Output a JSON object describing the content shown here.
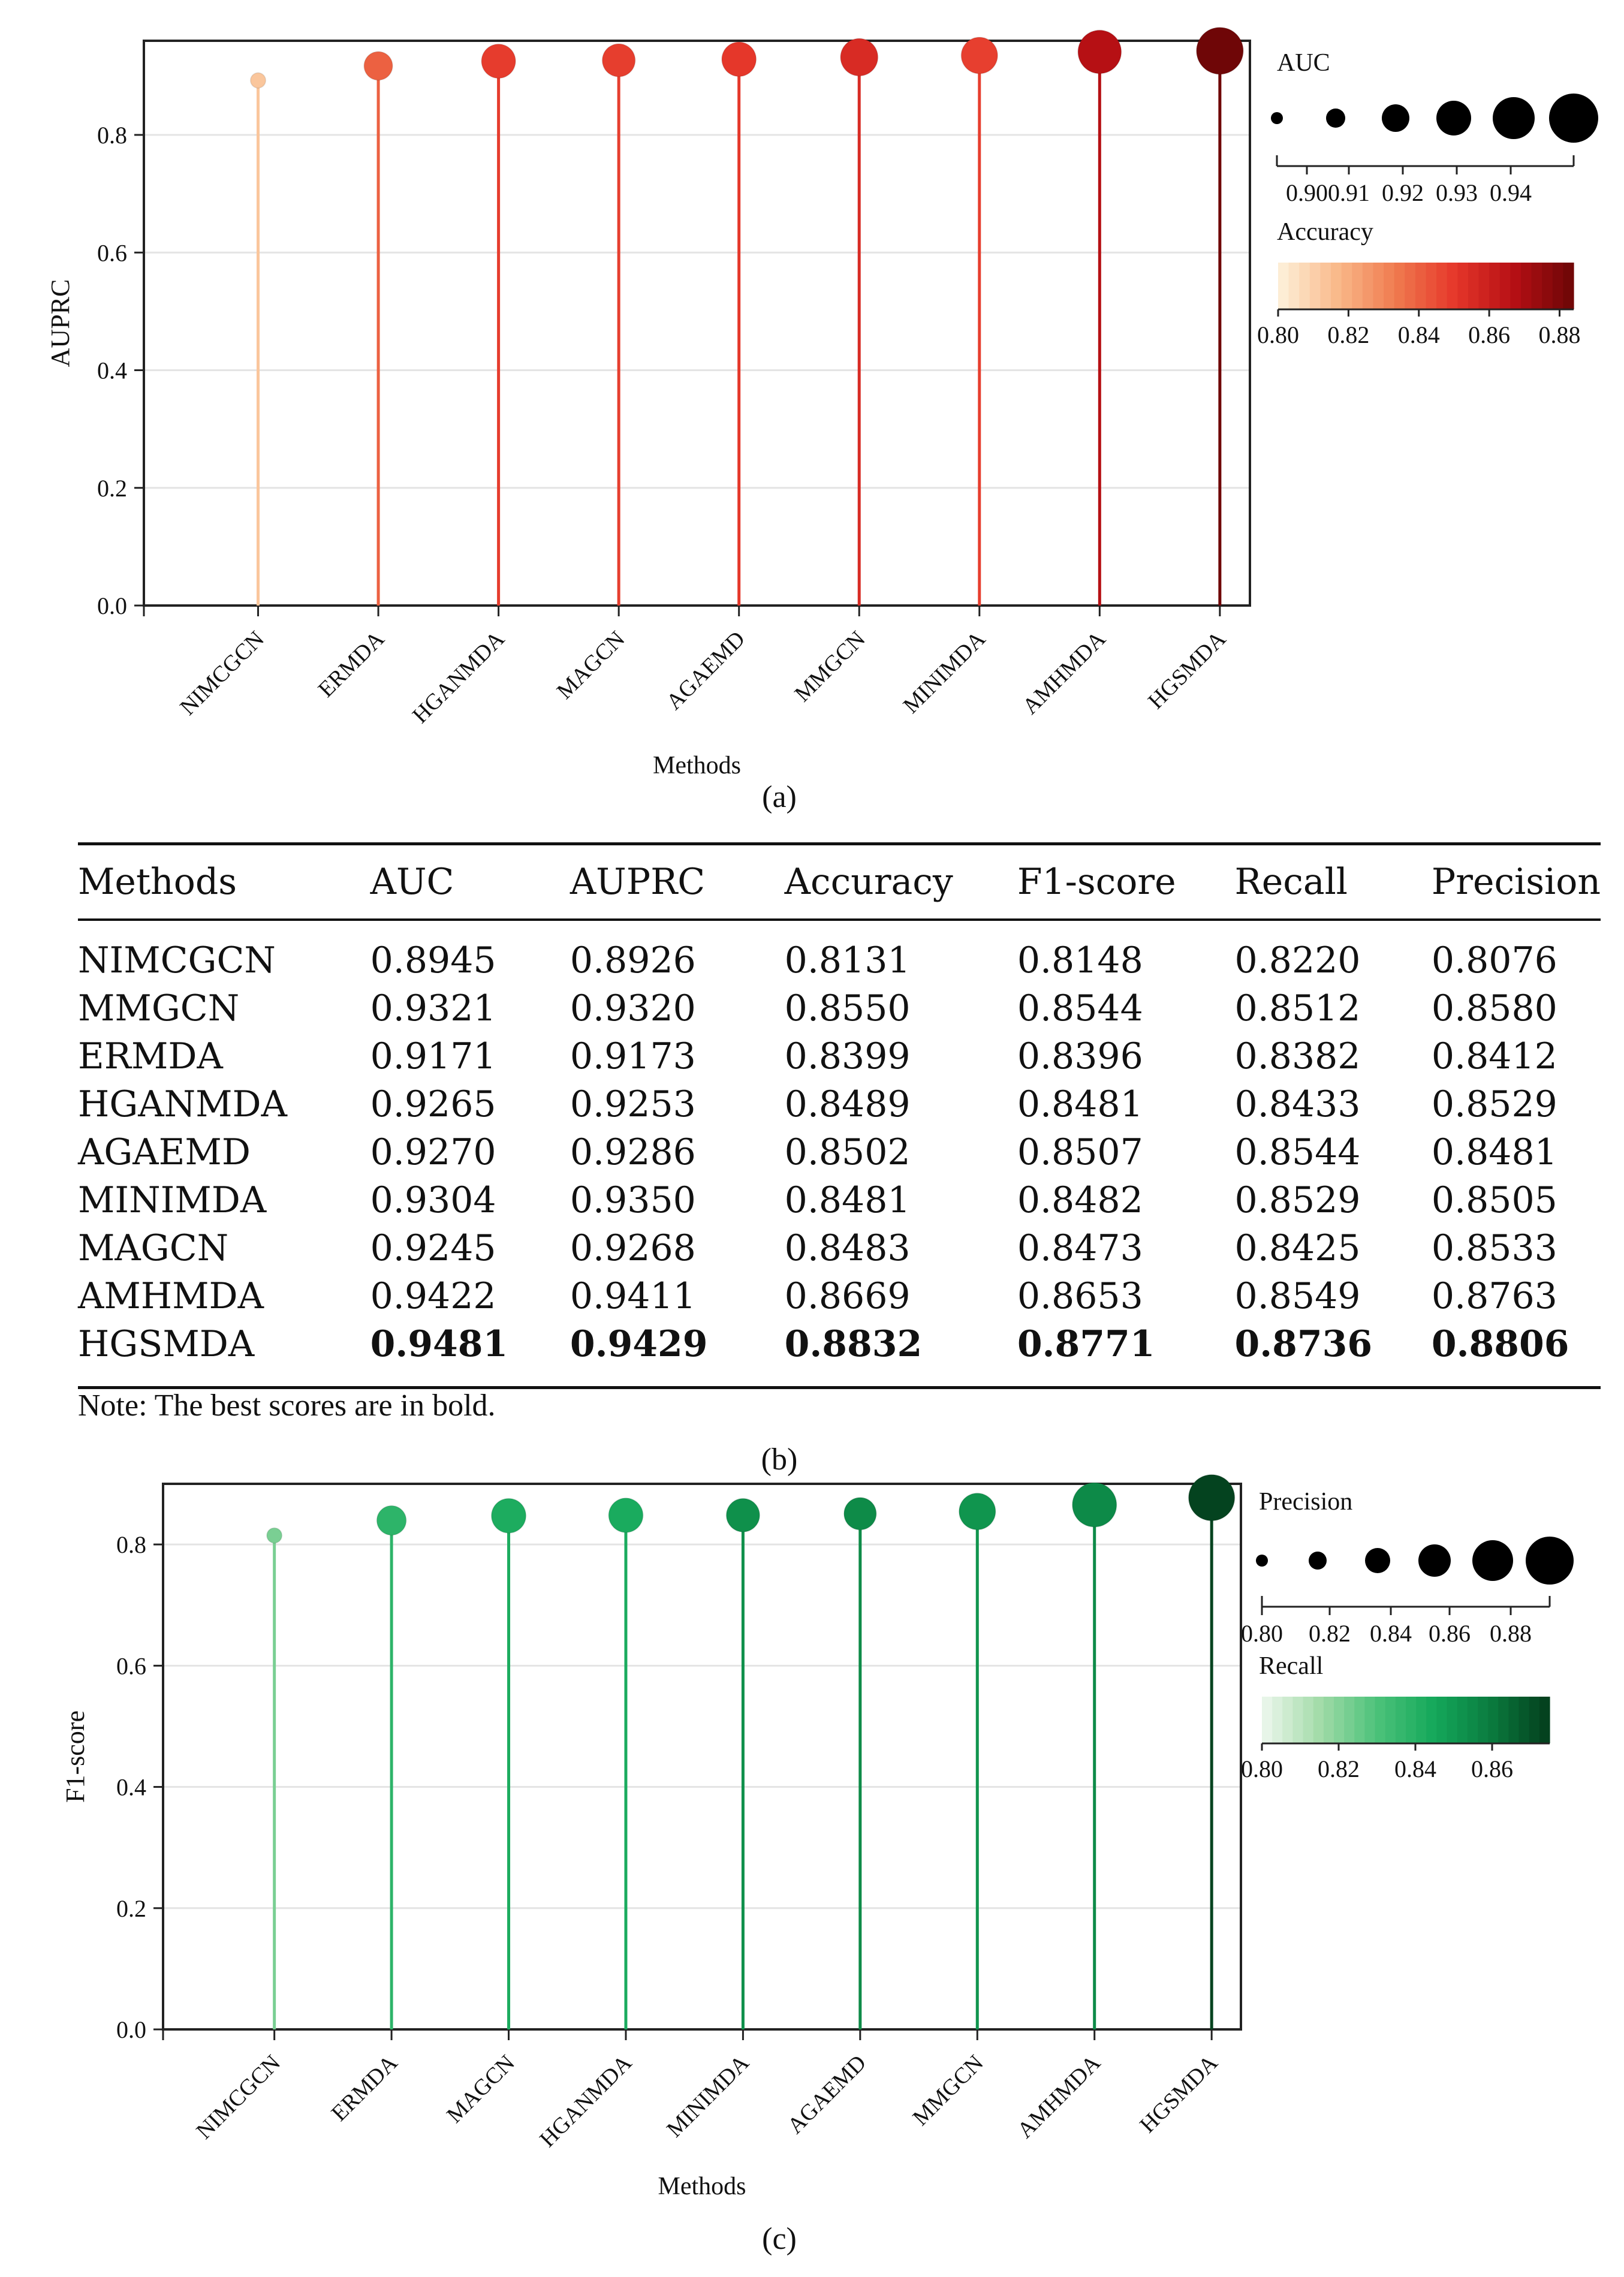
{
  "chart_data": [
    {
      "panel": "(a)",
      "type": "lollipop",
      "xlabel": "Methods",
      "ylabel": "AUPRC",
      "ylim": [
        0,
        0.96
      ],
      "yticks": [
        "0.0",
        "0.2",
        "0.4",
        "0.6",
        "0.8"
      ],
      "ytick_values": [
        0,
        0.2,
        0.4,
        0.6,
        0.8
      ],
      "categories": [
        "NIMCGCN",
        "ERMDA",
        "HGANMDA",
        "MAGCN",
        "AGAEMD",
        "MMGCN",
        "MINIMDA",
        "AMHMDA",
        "HGSMDA"
      ],
      "values": [
        0.8926,
        0.9173,
        0.9253,
        0.9268,
        0.9286,
        0.932,
        0.935,
        0.9411,
        0.9429
      ],
      "size_values": [
        0.8945,
        0.9171,
        0.9265,
        0.9245,
        0.927,
        0.9321,
        0.9304,
        0.9422,
        0.9481
      ],
      "color_values": [
        0.8131,
        0.8399,
        0.8489,
        0.8483,
        0.8502,
        0.855,
        0.8481,
        0.8669,
        0.8832
      ],
      "size_legend": {
        "title": "AUC",
        "ticks": [
          "0.90",
          "0.91",
          "0.92",
          "0.93",
          "0.94"
        ]
      },
      "color_legend": {
        "title": "Accuracy",
        "ticks": [
          "0.80",
          "0.82",
          "0.84",
          "0.86",
          "0.88"
        ],
        "range": [
          0.8,
          0.884
        ]
      },
      "palette": [
        "#fdf2dc",
        "#f9b98a",
        "#f07a4e",
        "#e5362a",
        "#b50f14",
        "#6b0606"
      ],
      "panel_label": "(a)"
    },
    {
      "panel": "(c)",
      "type": "lollipop",
      "xlabel": "Methods",
      "ylabel": "F1-score",
      "ylim": [
        0,
        0.9
      ],
      "yticks": [
        "0.0",
        "0.2",
        "0.4",
        "0.6",
        "0.8"
      ],
      "ytick_values": [
        0,
        0.2,
        0.4,
        0.6,
        0.8
      ],
      "categories": [
        "NIMCGCN",
        "ERMDA",
        "MAGCN",
        "HGANMDA",
        "MINIMDA",
        "AGAEMD",
        "MMGCN",
        "AMHMDA",
        "HGSMDA"
      ],
      "values": [
        0.8148,
        0.8396,
        0.8473,
        0.8481,
        0.8482,
        0.8507,
        0.8544,
        0.8653,
        0.8771
      ],
      "size_values": [
        0.8076,
        0.8412,
        0.8533,
        0.8529,
        0.8505,
        0.8481,
        0.858,
        0.8763,
        0.8806
      ],
      "color_values": [
        0.822,
        0.8382,
        0.8425,
        0.8433,
        0.8529,
        0.8544,
        0.8512,
        0.8549,
        0.8736
      ],
      "size_legend": {
        "title": "Precision",
        "ticks": [
          "0.80",
          "0.82",
          "0.84",
          "0.86",
          "0.88"
        ]
      },
      "color_legend": {
        "title": "Recall",
        "ticks": [
          "0.80",
          "0.82",
          "0.84",
          "0.86"
        ],
        "range": [
          0.8,
          0.875
        ]
      },
      "palette": [
        "#eef8ee",
        "#a3dba9",
        "#4cc27a",
        "#14a85a",
        "#0a7a3e",
        "#033d1c"
      ],
      "panel_label": "(c)"
    }
  ],
  "table": {
    "panel_label": "(b)",
    "headers": [
      "Methods",
      "AUC",
      "AUPRC",
      "Accuracy",
      "F1-score",
      "Recall",
      "Precision"
    ],
    "rows": [
      [
        "NIMCGCN",
        "0.8945",
        "0.8926",
        "0.8131",
        "0.8148",
        "0.8220",
        "0.8076"
      ],
      [
        "MMGCN",
        "0.9321",
        "0.9320",
        "0.8550",
        "0.8544",
        "0.8512",
        "0.8580"
      ],
      [
        "ERMDA",
        "0.9171",
        "0.9173",
        "0.8399",
        "0.8396",
        "0.8382",
        "0.8412"
      ],
      [
        "HGANMDA",
        "0.9265",
        "0.9253",
        "0.8489",
        "0.8481",
        "0.8433",
        "0.8529"
      ],
      [
        "AGAEMD",
        "0.9270",
        "0.9286",
        "0.8502",
        "0.8507",
        "0.8544",
        "0.8481"
      ],
      [
        "MINIMDA",
        "0.9304",
        "0.9350",
        "0.8481",
        "0.8482",
        "0.8529",
        "0.8505"
      ],
      [
        "MAGCN",
        "0.9245",
        "0.9268",
        "0.8483",
        "0.8473",
        "0.8425",
        "0.8533"
      ],
      [
        "AMHMDA",
        "0.9422",
        "0.9411",
        "0.8669",
        "0.8653",
        "0.8549",
        "0.8763"
      ],
      [
        "HGSMDA",
        "0.9481",
        "0.9429",
        "0.8832",
        "0.8771",
        "0.8736",
        "0.8806"
      ]
    ],
    "note": "Note: The best scores are in bold."
  }
}
